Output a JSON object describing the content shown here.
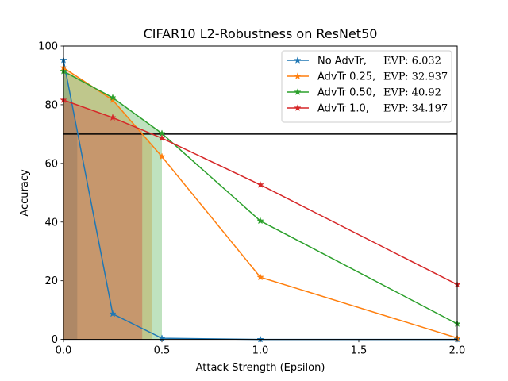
{
  "chart_data": {
    "type": "line",
    "title": "CIFAR10 L2-Robustness on ResNet50",
    "xlabel": "Attack Strength (Epsilon)",
    "ylabel": "Accuracy",
    "xlim": [
      0.0,
      2.0
    ],
    "ylim": [
      0,
      100
    ],
    "xticks": [
      "0.0",
      "0.5",
      "1.0",
      "1.5",
      "2.0"
    ],
    "yticks": [
      "0",
      "20",
      "40",
      "60",
      "80",
      "100"
    ],
    "x": [
      0.0,
      0.25,
      0.5,
      1.0,
      2.0
    ],
    "threshold": 70,
    "grid": false,
    "legend_position": "top-right",
    "series": [
      {
        "name": "No AdvTr,",
        "evp_label": "EVP: 6.032",
        "color": "#1f77b4",
        "values": [
          95.2,
          8.7,
          0.4,
          0.0,
          0.0
        ],
        "shade_end": 0.07
      },
      {
        "name": "AdvTr 0.25,",
        "evp_label": "EVP: 32.937",
        "color": "#ff7f0e",
        "values": [
          92.6,
          81.6,
          62.3,
          21.2,
          0.5
        ],
        "shade_end": 0.45
      },
      {
        "name": "AdvTr 0.50,",
        "evp_label": "EVP: 40.92",
        "color": "#2ca02c",
        "values": [
          91.4,
          82.4,
          70.2,
          40.4,
          5.3
        ],
        "shade_end": 0.5
      },
      {
        "name": "AdvTr 1.0,",
        "evp_label": "EVP: 34.197",
        "color": "#d62728",
        "values": [
          81.6,
          75.6,
          68.6,
          52.7,
          18.7
        ],
        "shade_end": 0.4
      }
    ]
  }
}
